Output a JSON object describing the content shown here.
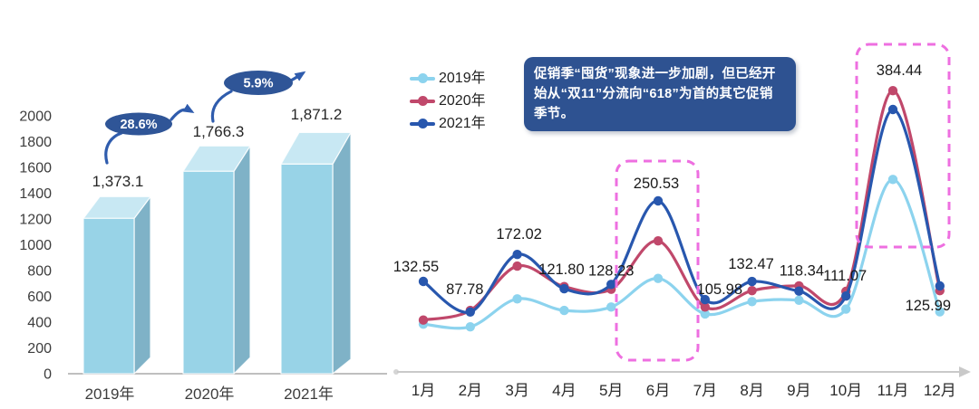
{
  "chart_data": [
    {
      "type": "bar",
      "variant": "3d-column",
      "title": "",
      "categories": [
        "2019年",
        "2020年",
        "2021年"
      ],
      "values": [
        1373.1,
        1766.3,
        1871.2
      ],
      "value_labels": [
        "1,373.1",
        "1,766.3",
        "1,871.2"
      ],
      "growth_callouts": [
        {
          "label": "28.6%",
          "from": "2019年",
          "to": "2020年"
        },
        {
          "label": "5.9%",
          "from": "2020年",
          "to": "2021年"
        }
      ],
      "ylim": [
        0,
        2000
      ],
      "y_ticks": [
        0,
        200,
        400,
        600,
        800,
        1000,
        1200,
        1400,
        1600,
        1800,
        2000
      ],
      "grid": false,
      "legend": null,
      "colors": {
        "bar_front": "#98D3E7",
        "bar_top": "#C8E8F3",
        "bar_side": "#7FB2C7",
        "callout_fill": "#2F5597",
        "arrow": "#2F5CAD",
        "axis_text": "#3D3D3D",
        "baseline": "#BFBFBF"
      }
    },
    {
      "type": "line",
      "title": "",
      "x": [
        "1月",
        "2月",
        "3月",
        "4月",
        "5月",
        "6月",
        "7月",
        "8月",
        "9月",
        "10月",
        "11月",
        "12月"
      ],
      "series": [
        {
          "name": "2019年",
          "color": "#8CD3EE",
          "estimated": true,
          "values": [
            70,
            66,
            107,
            90,
            95,
            137,
            85,
            103,
            105,
            92,
            282,
            88
          ]
        },
        {
          "name": "2020年",
          "color": "#C0486B",
          "estimated": true,
          "values": [
            76,
            90,
            155,
            125,
            121,
            192,
            95,
            119,
            126,
            118,
            412,
            119
          ]
        },
        {
          "name": "2021年",
          "color": "#2857AE",
          "estimated": false,
          "values": [
            132.55,
            87.78,
            172.02,
            121.8,
            128.23,
            250.53,
            105.98,
            132.47,
            118.34,
            111.07,
            384.44,
            125.99
          ]
        }
      ],
      "data_labels": {
        "series": "2021年",
        "labels": [
          "132.55",
          "87.78",
          "172.02",
          "121.80",
          "128.23",
          "250.53",
          "105.98",
          "132.47",
          "118.34",
          "111.07",
          "384.44",
          "125.99"
        ]
      },
      "legend": {
        "position": "top-left",
        "items": [
          "2019年",
          "2020年",
          "2021年"
        ]
      },
      "highlight_boxes": [
        {
          "around": "6月"
        },
        {
          "around": "11月"
        }
      ],
      "highlight_color": "#EE6FE0",
      "annotation": {
        "text": "促销季“囤货”现象进一步加剧，但已经开始从“双11”分流向“618”为首的其它促销季节。",
        "bg": "#2E5291",
        "text_color": "#FFFFFF"
      },
      "grid": false,
      "axis_color": "#C9C9C9"
    }
  ]
}
